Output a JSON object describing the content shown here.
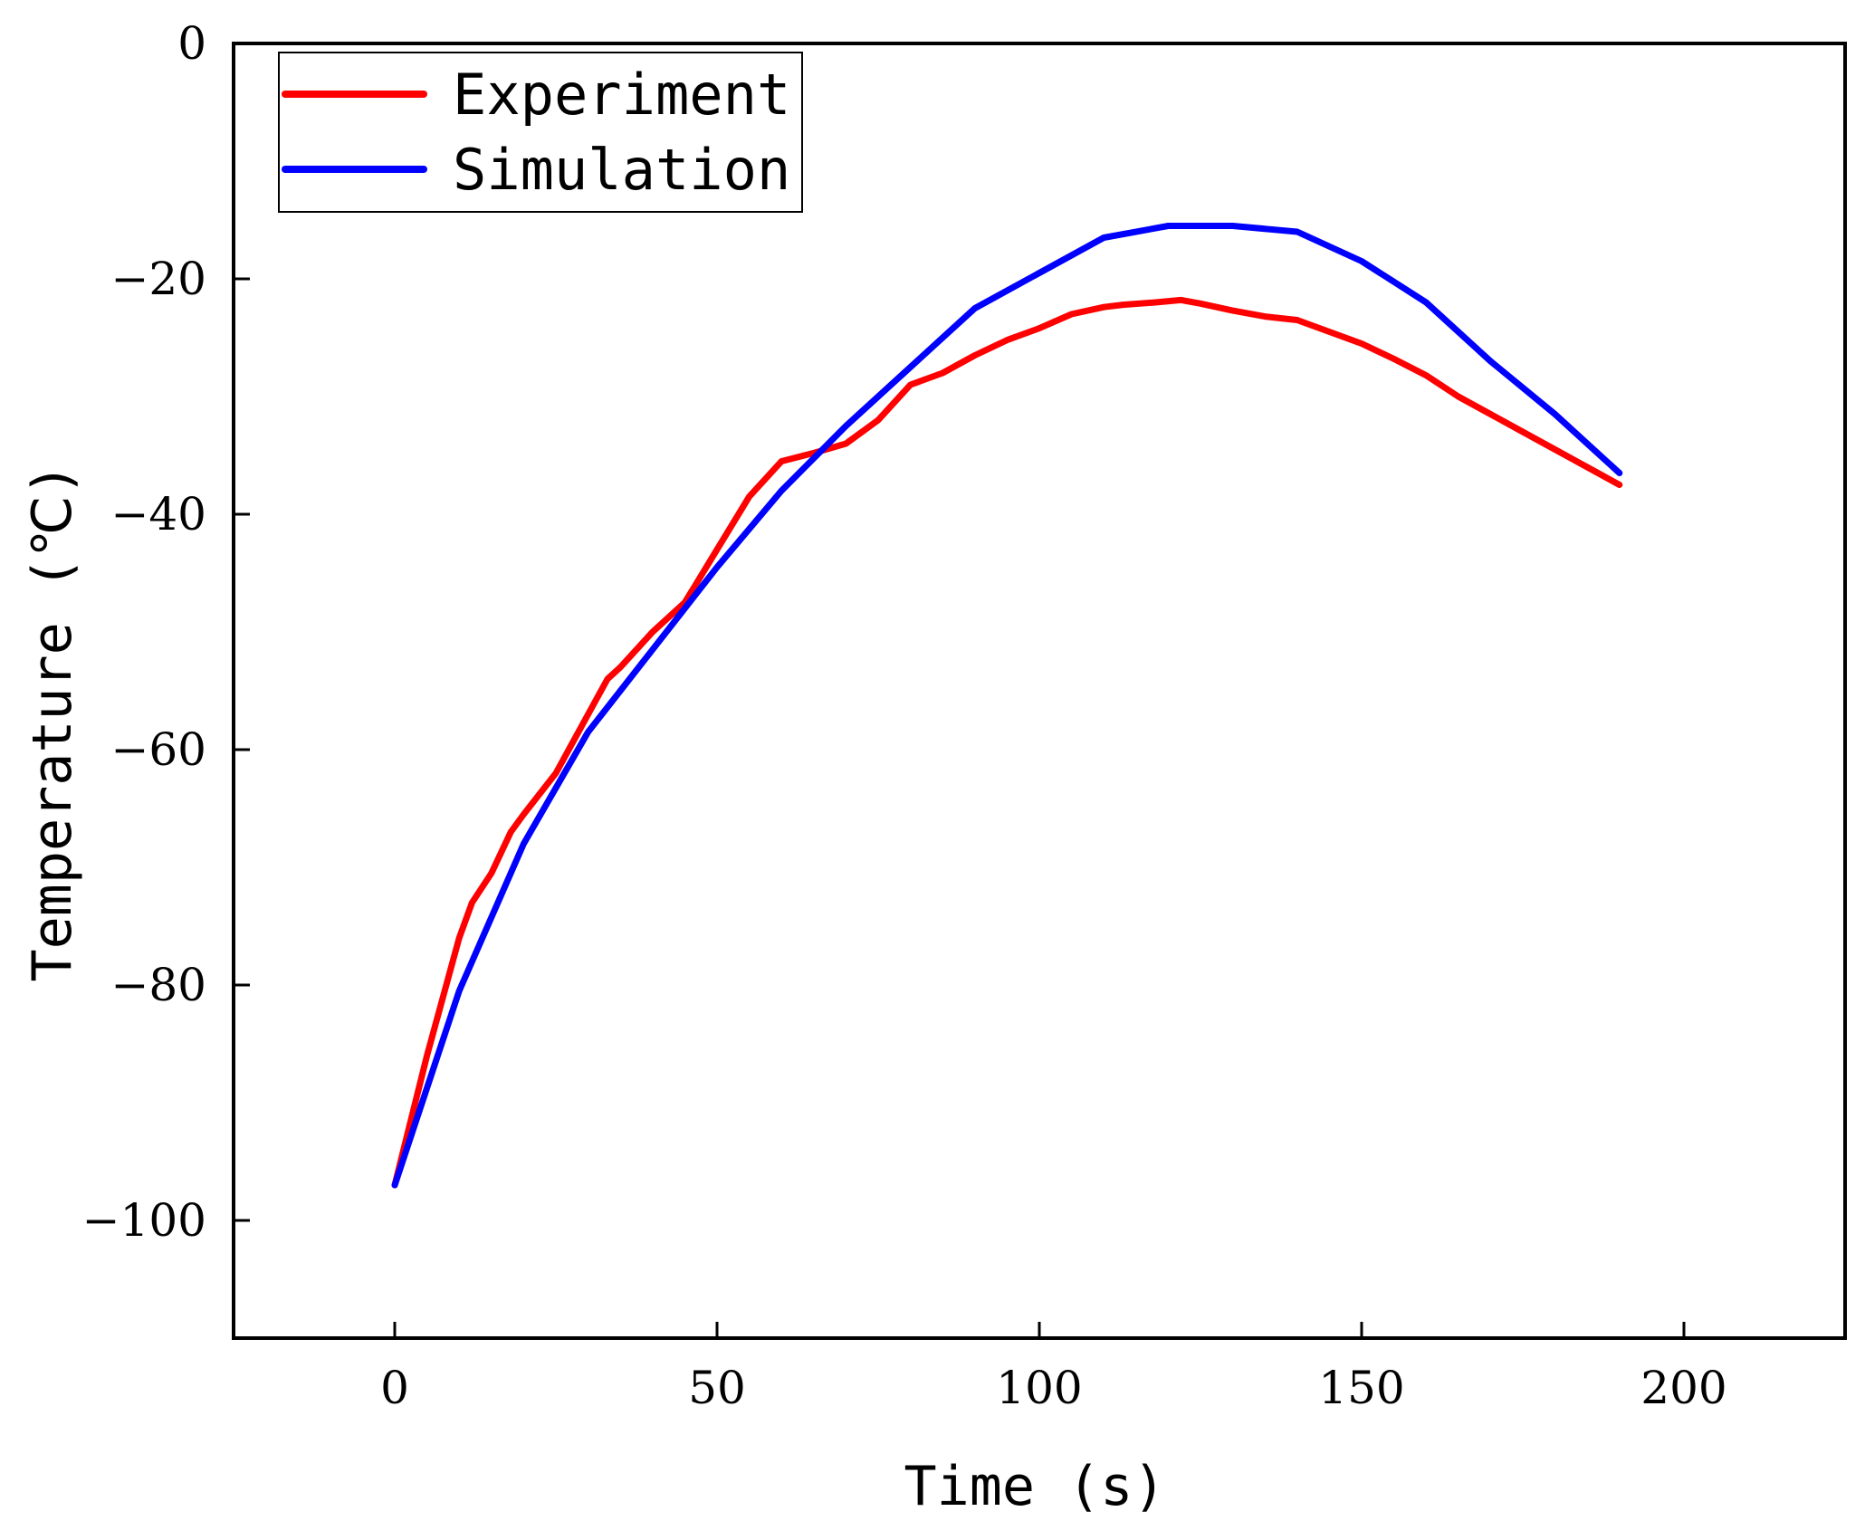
{
  "chart_data": {
    "type": "line",
    "title": "",
    "xlabel": "Time (s)",
    "ylabel": "Temperature (℃)",
    "xlim": [
      -25,
      225
    ],
    "ylim": [
      -110,
      0
    ],
    "xticks": [
      0,
      50,
      100,
      150,
      200
    ],
    "yticks": [
      0,
      -20,
      -40,
      -60,
      -80,
      -100
    ],
    "x_tick_labels": [
      "0",
      "50",
      "100",
      "150",
      "200"
    ],
    "y_tick_labels": [
      "0",
      "−20",
      "−40",
      "−60",
      "−80",
      "−100"
    ],
    "grid": false,
    "legend_position": "top-left",
    "series": [
      {
        "name": "Experiment",
        "color": "#ff0000",
        "x": [
          0,
          5,
          10,
          12,
          15,
          18,
          20,
          25,
          30,
          33,
          35,
          40,
          45,
          50,
          55,
          60,
          65,
          70,
          75,
          80,
          85,
          90,
          95,
          100,
          105,
          110,
          113,
          118,
          122,
          125,
          130,
          135,
          140,
          145,
          150,
          155,
          160,
          165,
          170,
          175,
          180,
          185,
          190
        ],
        "values": [
          -97,
          -86,
          -76,
          -73,
          -70.5,
          -67,
          -65.5,
          -62,
          -57,
          -54,
          -53,
          -50,
          -47.5,
          -43,
          -38.5,
          -35.5,
          -34.8,
          -34,
          -32,
          -29,
          -28,
          -26.5,
          -25.2,
          -24.2,
          -23,
          -22.4,
          -22.2,
          -22,
          -21.8,
          -22.1,
          -22.7,
          -23.2,
          -23.5,
          -24.5,
          -25.5,
          -26.8,
          -28.2,
          -30,
          -31.5,
          -33,
          -34.5,
          -36,
          -37.5
        ]
      },
      {
        "name": "Simulation",
        "color": "#0000ff",
        "x": [
          0,
          10,
          20,
          30,
          40,
          50,
          60,
          70,
          80,
          90,
          100,
          110,
          120,
          130,
          140,
          150,
          160,
          170,
          180,
          190
        ],
        "values": [
          -97,
          -80.5,
          -68,
          -58.5,
          -51.5,
          -44.5,
          -38,
          -32.5,
          -27.5,
          -22.5,
          -19.5,
          -16.5,
          -15.5,
          -15.5,
          -16,
          -18.5,
          -22,
          -27,
          -31.5,
          -36.5
        ]
      }
    ]
  }
}
